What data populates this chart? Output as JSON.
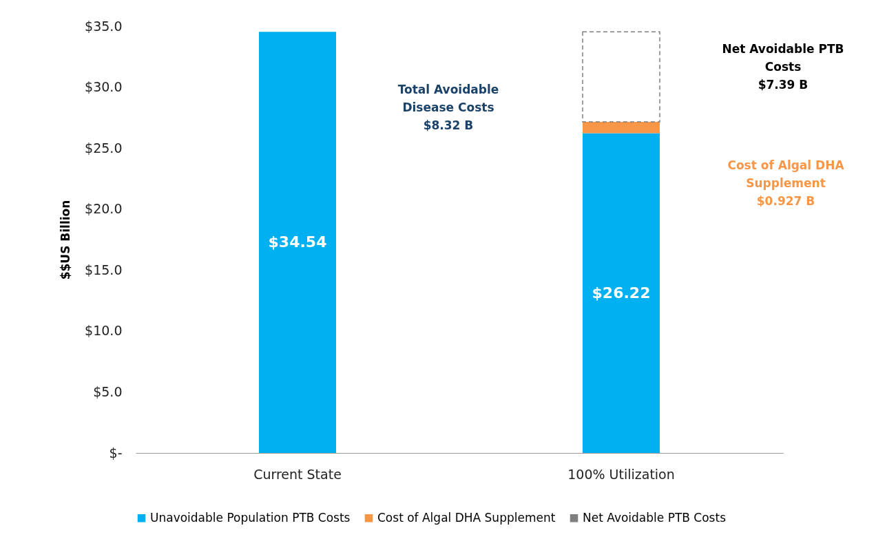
{
  "chart_data": {
    "type": "bar",
    "stacked": true,
    "categories": [
      "Current State",
      "100% Utilization"
    ],
    "ylabel": "$$US Billion",
    "ylim": [
      0,
      35
    ],
    "yticks": [
      {
        "value": 0,
        "label": "$-"
      },
      {
        "value": 5,
        "label": "$5.0"
      },
      {
        "value": 10,
        "label": "$10.0"
      },
      {
        "value": 15,
        "label": "$15.0"
      },
      {
        "value": 20,
        "label": "$20.0"
      },
      {
        "value": 25,
        "label": "$25.0"
      },
      {
        "value": 30,
        "label": "$30.0"
      },
      {
        "value": 35,
        "label": "$35.0"
      }
    ],
    "series": [
      {
        "name": "Unavoidable Population PTB Costs",
        "color": "#00b0f0",
        "values": [
          34.54,
          26.22
        ],
        "value_labels": [
          "$34.54",
          "$26.22"
        ]
      },
      {
        "name": "Cost of Algal DHA Supplement",
        "color": "#f79646",
        "values": [
          null,
          0.927
        ]
      },
      {
        "name": "Net Avoidable PTB Costs",
        "color": "#7f7f7f",
        "values": [
          null,
          7.39
        ],
        "line_style": "dashed"
      }
    ],
    "annotations": [
      "Total Avoidable\nDisease Costs\n$8.32 B",
      "Net Avoidable PTB\nCosts\n$7.39 B",
      "Cost of Algal DHA\nSupplement\n$0.927 B"
    ],
    "legend": "bottom",
    "grid": false
  }
}
